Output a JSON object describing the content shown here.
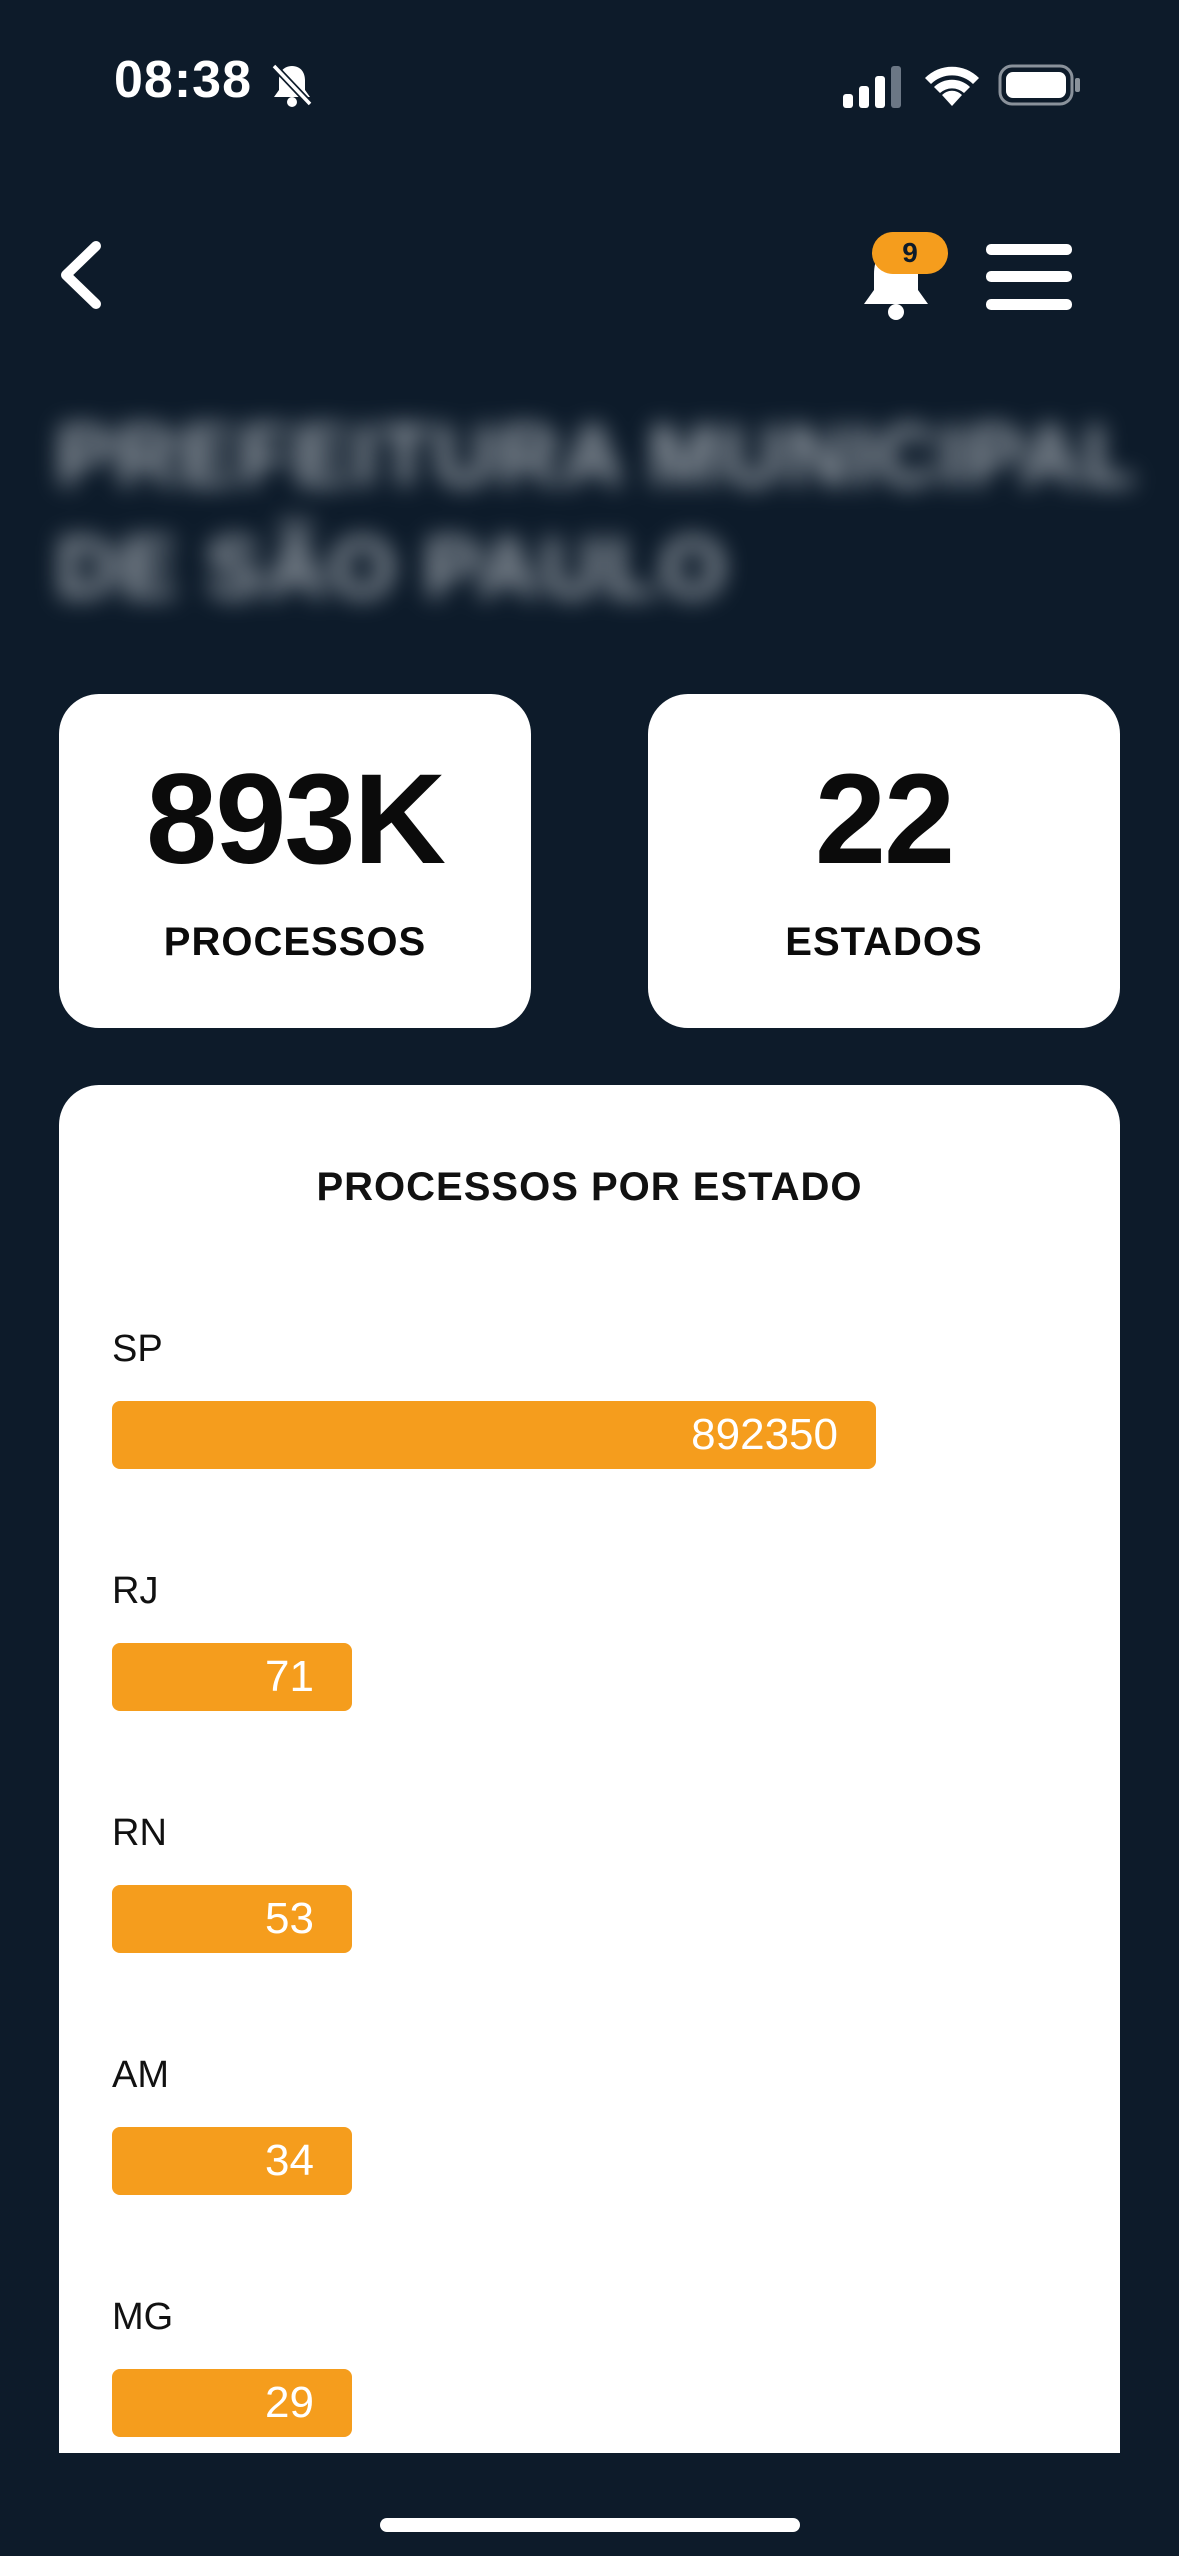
{
  "status": {
    "time": "08:38",
    "icons": [
      "bell-slash-icon",
      "signal-icon",
      "wifi-icon",
      "battery-icon"
    ]
  },
  "nav": {
    "back_icon": "chevron-left-icon",
    "bell_icon": "bell-icon",
    "notification_count": "9",
    "menu_icon": "hamburger-menu-icon"
  },
  "org": {
    "title": "PREFEITURA MUNICIPAL DE SÃO PAULO"
  },
  "stats": {
    "processes": {
      "value": "893K",
      "label": "PROCESSOS"
    },
    "states": {
      "value": "22",
      "label": "ESTADOS"
    }
  },
  "colors": {
    "background": "#0d1b2a",
    "card": "#ffffff",
    "bar": "#f59d1d",
    "badge": "#f59d1d"
  },
  "chart_data": {
    "type": "bar",
    "orientation": "horizontal",
    "title": "PROCESSOS POR ESTADO",
    "categories": [
      "SP",
      "RJ",
      "RN",
      "AM",
      "MG"
    ],
    "values": [
      892350,
      71,
      53,
      34,
      29
    ]
  }
}
